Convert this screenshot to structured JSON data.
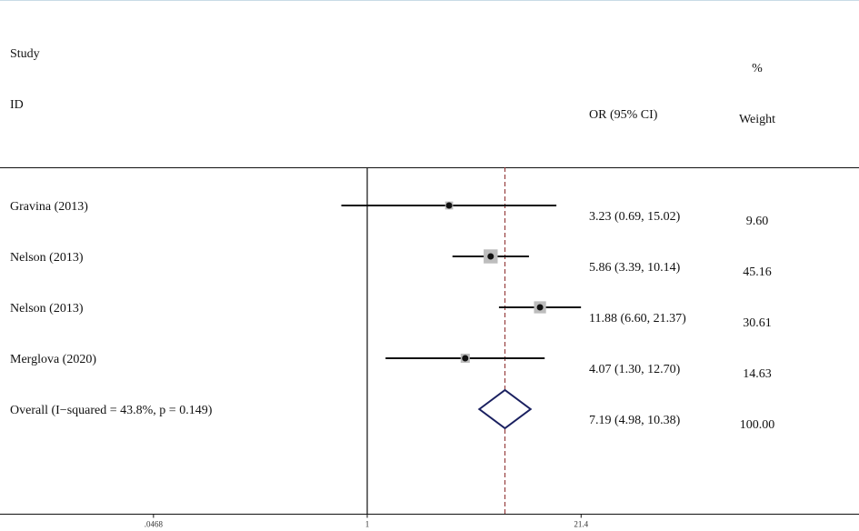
{
  "chart_data": {
    "type": "forest",
    "header": {
      "study": "Study",
      "id": "ID",
      "or_ci": "OR (95% CI)",
      "pct": "%",
      "weight": "Weight"
    },
    "studies": [
      {
        "label": "Gravina (2013)",
        "or": 3.23,
        "lo": 0.69,
        "hi": 15.02,
        "text": "3.23 (0.69, 15.02)",
        "weight": 9.6,
        "weight_text": "9.60"
      },
      {
        "label": "Nelson (2013)",
        "or": 5.86,
        "lo": 3.39,
        "hi": 10.14,
        "text": "5.86 (3.39, 10.14)",
        "weight": 45.16,
        "weight_text": "45.16"
      },
      {
        "label": "Nelson (2013)",
        "or": 11.88,
        "lo": 6.6,
        "hi": 21.37,
        "text": "11.88 (6.60, 21.37)",
        "weight": 30.61,
        "weight_text": "30.61"
      },
      {
        "label": "Merglova (2020)",
        "or": 4.07,
        "lo": 1.3,
        "hi": 12.7,
        "text": "4.07 (1.30, 12.70)",
        "weight": 14.63,
        "weight_text": "14.63"
      }
    ],
    "overall": {
      "label": "Overall  (I−squared = 43.8%, p = 0.149)",
      "or": 7.19,
      "lo": 4.98,
      "hi": 10.38,
      "text": "7.19 (4.98, 10.38)",
      "weight_text": "100.00"
    },
    "x_axis": {
      "scale": "log",
      "ticks": [
        {
          "value": 0.0468,
          "label": ".0468"
        },
        {
          "value": 1,
          "label": "1"
        },
        {
          "value": 21.4,
          "label": "21.4"
        }
      ],
      "null_value": 1
    },
    "colors": {
      "marker_box": "#bdbdbd",
      "ci_line": "#111111",
      "diamond": "#1a2060",
      "reference_line": "#8b2a2a",
      "axis": "#111111"
    }
  }
}
